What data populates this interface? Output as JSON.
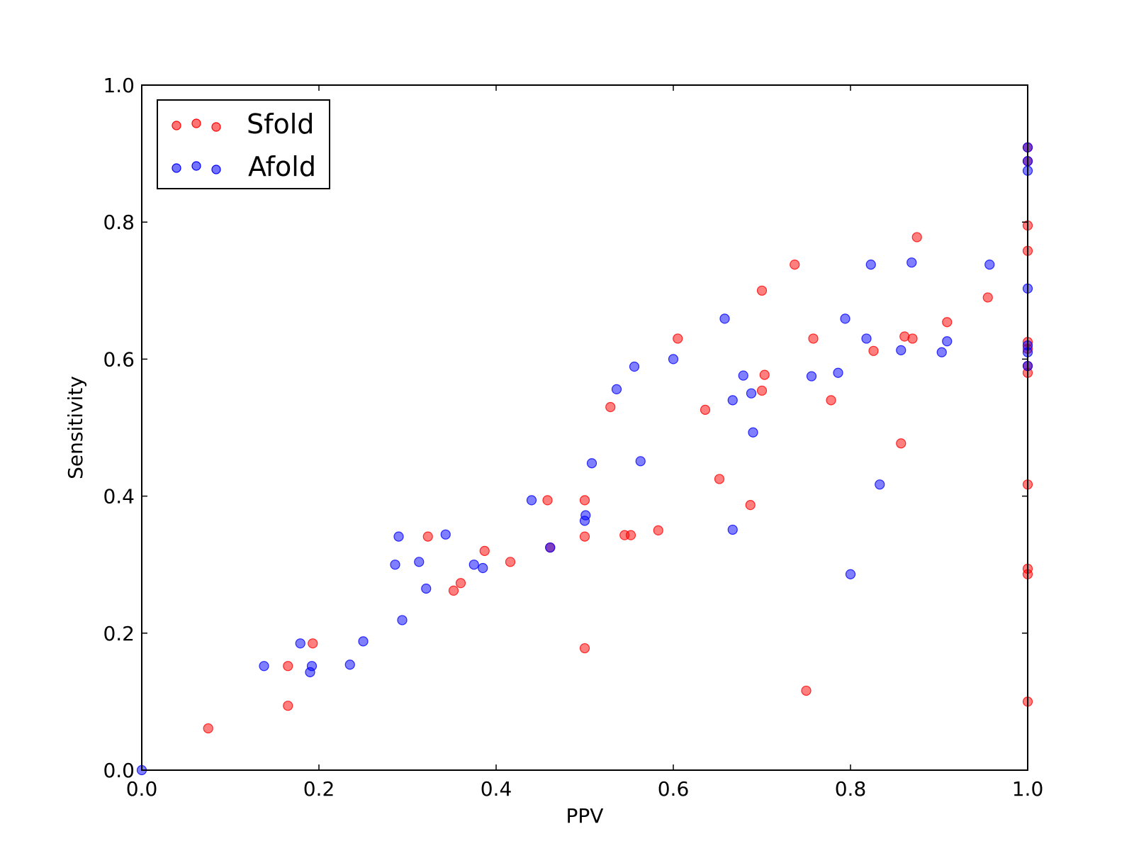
{
  "chart_data": {
    "type": "scatter",
    "xlabel": "PPV",
    "ylabel": "Sensitivity",
    "xlim": [
      0.0,
      1.0
    ],
    "ylim": [
      0.0,
      1.0
    ],
    "xticks": [
      "0.0",
      "0.2",
      "0.4",
      "0.6",
      "0.8",
      "1.0"
    ],
    "yticks": [
      "0.0",
      "0.2",
      "0.4",
      "0.6",
      "0.8",
      "1.0"
    ],
    "grid": false,
    "legend": "top-left",
    "series": [
      {
        "name": "Sfold",
        "color": "#ff0000",
        "points": [
          [
            0.075,
            0.061
          ],
          [
            0.165,
            0.152
          ],
          [
            0.165,
            0.094
          ],
          [
            0.193,
            0.185
          ],
          [
            0.323,
            0.341
          ],
          [
            0.352,
            0.262
          ],
          [
            0.36,
            0.273
          ],
          [
            0.387,
            0.32
          ],
          [
            0.416,
            0.304
          ],
          [
            0.458,
            0.394
          ],
          [
            0.461,
            0.325
          ],
          [
            0.5,
            0.394
          ],
          [
            0.5,
            0.341
          ],
          [
            0.5,
            0.178
          ],
          [
            0.529,
            0.53
          ],
          [
            0.545,
            0.343
          ],
          [
            0.552,
            0.343
          ],
          [
            0.583,
            0.35
          ],
          [
            0.605,
            0.63
          ],
          [
            0.636,
            0.526
          ],
          [
            0.652,
            0.425
          ],
          [
            0.687,
            0.387
          ],
          [
            0.7,
            0.554
          ],
          [
            0.7,
            0.7
          ],
          [
            0.703,
            0.577
          ],
          [
            0.737,
            0.738
          ],
          [
            0.75,
            0.116
          ],
          [
            0.758,
            0.63
          ],
          [
            0.778,
            0.54
          ],
          [
            0.826,
            0.612
          ],
          [
            0.857,
            0.477
          ],
          [
            0.861,
            0.633
          ],
          [
            0.87,
            0.63
          ],
          [
            0.875,
            0.778
          ],
          [
            0.909,
            0.654
          ],
          [
            0.955,
            0.69
          ],
          [
            1.0,
            0.909
          ],
          [
            1.0,
            0.889
          ],
          [
            1.0,
            0.795
          ],
          [
            1.0,
            0.758
          ],
          [
            1.0,
            0.625
          ],
          [
            1.0,
            0.615
          ],
          [
            1.0,
            0.59
          ],
          [
            1.0,
            0.58
          ],
          [
            1.0,
            0.417
          ],
          [
            1.0,
            0.294
          ],
          [
            1.0,
            0.286
          ],
          [
            1.0,
            0.1
          ]
        ]
      },
      {
        "name": "Afold",
        "color": "#0000ff",
        "points": [
          [
            0.0,
            0.0
          ],
          [
            0.138,
            0.152
          ],
          [
            0.179,
            0.185
          ],
          [
            0.19,
            0.143
          ],
          [
            0.192,
            0.152
          ],
          [
            0.235,
            0.154
          ],
          [
            0.25,
            0.188
          ],
          [
            0.286,
            0.3
          ],
          [
            0.29,
            0.341
          ],
          [
            0.294,
            0.219
          ],
          [
            0.313,
            0.304
          ],
          [
            0.321,
            0.265
          ],
          [
            0.343,
            0.344
          ],
          [
            0.375,
            0.3
          ],
          [
            0.385,
            0.295
          ],
          [
            0.44,
            0.394
          ],
          [
            0.461,
            0.325
          ],
          [
            0.5,
            0.364
          ],
          [
            0.501,
            0.372
          ],
          [
            0.508,
            0.448
          ],
          [
            0.536,
            0.556
          ],
          [
            0.556,
            0.589
          ],
          [
            0.563,
            0.451
          ],
          [
            0.6,
            0.6
          ],
          [
            0.658,
            0.659
          ],
          [
            0.667,
            0.351
          ],
          [
            0.667,
            0.54
          ],
          [
            0.679,
            0.576
          ],
          [
            0.688,
            0.55
          ],
          [
            0.69,
            0.493
          ],
          [
            0.756,
            0.575
          ],
          [
            0.786,
            0.58
          ],
          [
            0.794,
            0.659
          ],
          [
            0.8,
            0.286
          ],
          [
            0.818,
            0.63
          ],
          [
            0.823,
            0.738
          ],
          [
            0.833,
            0.417
          ],
          [
            0.857,
            0.613
          ],
          [
            0.869,
            0.741
          ],
          [
            0.903,
            0.61
          ],
          [
            0.909,
            0.626
          ],
          [
            0.957,
            0.738
          ],
          [
            1.0,
            0.909
          ],
          [
            1.0,
            0.889
          ],
          [
            1.0,
            0.875
          ],
          [
            1.0,
            0.703
          ],
          [
            1.0,
            0.62
          ],
          [
            1.0,
            0.61
          ],
          [
            1.0,
            0.59
          ]
        ]
      }
    ]
  }
}
